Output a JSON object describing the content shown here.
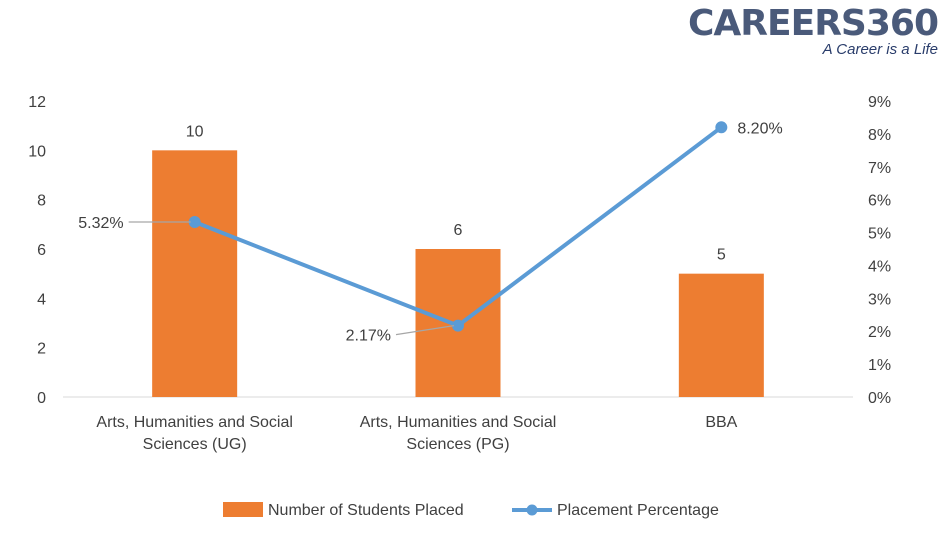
{
  "logo": {
    "text": "CAREERS360",
    "tagline": "A Career is a Life"
  },
  "colors": {
    "bar": "#ED7D31",
    "line": "#5B9BD5",
    "axis_text": "#404040",
    "axis_line": "#D9D9D9"
  },
  "chart_data": {
    "type": "bar",
    "categories": [
      [
        "Arts, Humanities and Social",
        "Sciences (UG)"
      ],
      [
        "Arts, Humanities and Social",
        "Sciences (PG)"
      ],
      [
        "BBA"
      ]
    ],
    "series": [
      {
        "name": "Number of Students Placed",
        "type": "bar",
        "axis": "left",
        "values": [
          10,
          6,
          5
        ],
        "labels": [
          "10",
          "6",
          "5"
        ]
      },
      {
        "name": "Placement Percentage",
        "type": "line",
        "axis": "right",
        "values": [
          5.32,
          2.17,
          8.2
        ],
        "labels": [
          "5.32%",
          "2.17%",
          "8.20%"
        ]
      }
    ],
    "y_left": {
      "lim": [
        0,
        12
      ],
      "ticks": [
        "0",
        "2",
        "4",
        "6",
        "8",
        "10",
        "12"
      ]
    },
    "y_right": {
      "lim": [
        0,
        9
      ],
      "ticks": [
        "0%",
        "1%",
        "2%",
        "3%",
        "4%",
        "5%",
        "6%",
        "7%",
        "8%",
        "9%"
      ]
    },
    "grid": false,
    "legend": "bottom"
  }
}
